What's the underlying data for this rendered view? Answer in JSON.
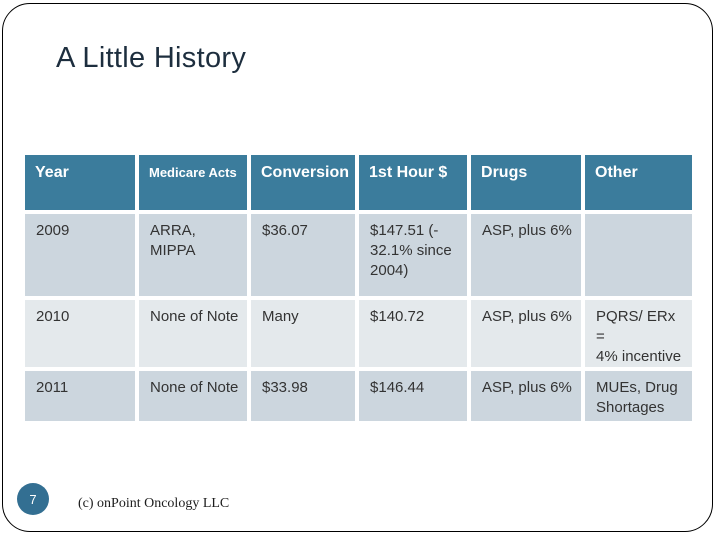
{
  "slide": {
    "title": "A Little History",
    "page_number": "7",
    "footer": "(c) onPoint Oncology LLC"
  },
  "table": {
    "columns": [
      "Year",
      "Medicare Acts",
      "Conversion",
      "1st Hour $",
      "Drugs",
      "Other"
    ],
    "rows": [
      [
        "2009",
        "ARRA,\nMIPPA",
        "$36.07",
        "$147.51 (-\n32.1% since\n2004)",
        "ASP, plus 6%",
        ""
      ],
      [
        "2010",
        "None of Note",
        "Many",
        "$140.72",
        "ASP, plus 6%",
        "PQRS/ ERx =\n4% incentive"
      ],
      [
        "2011",
        "None of Note",
        "$33.98",
        "$146.44",
        "ASP, plus 6%",
        "MUEs, Drug\nShortages"
      ]
    ]
  },
  "colors": {
    "header_bg": "#3b7c9c",
    "header_text": "#ffffff",
    "row_dark": "#ccd6de",
    "row_light": "#e4e9ec",
    "body_text": "#333333",
    "title_text": "#1d2e3e",
    "circle_bg": "#336f92"
  }
}
